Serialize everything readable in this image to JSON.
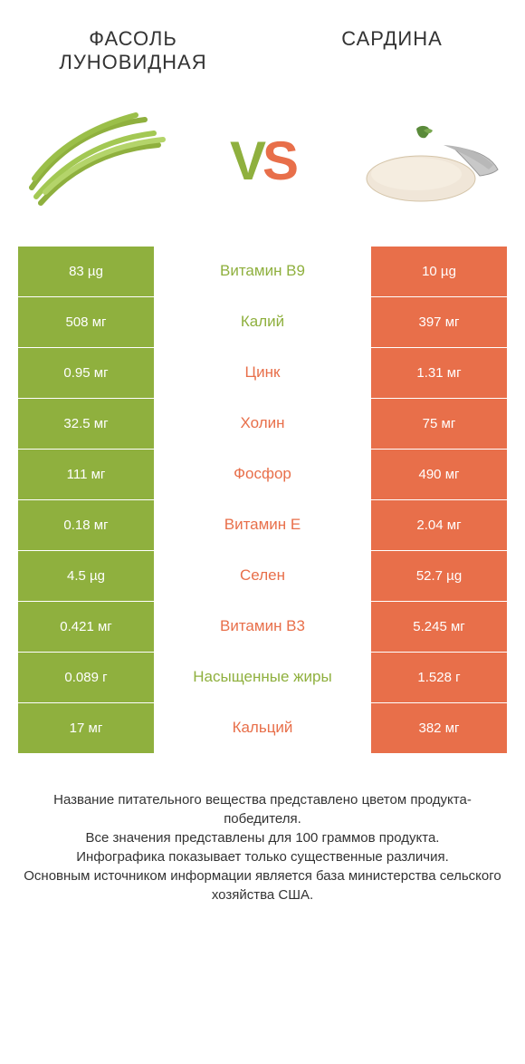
{
  "header": {
    "left_title": "ФАСОЛЬ ЛУНОВИДНАЯ",
    "right_title": "САРДИНА"
  },
  "vs": {
    "v": "V",
    "s": "S"
  },
  "colors": {
    "green": "#8fb03e",
    "orange": "#e86f4a",
    "text": "#333333",
    "bg": "#ffffff"
  },
  "rows": [
    {
      "label": "Витамин B9",
      "left": "83 µg",
      "right": "10 µg",
      "winner": "left"
    },
    {
      "label": "Калий",
      "left": "508 мг",
      "right": "397 мг",
      "winner": "left"
    },
    {
      "label": "Цинк",
      "left": "0.95 мг",
      "right": "1.31 мг",
      "winner": "right"
    },
    {
      "label": "Холин",
      "left": "32.5 мг",
      "right": "75 мг",
      "winner": "right"
    },
    {
      "label": "Фосфор",
      "left": "111 мг",
      "right": "490 мг",
      "winner": "right"
    },
    {
      "label": "Витамин E",
      "left": "0.18 мг",
      "right": "2.04 мг",
      "winner": "right"
    },
    {
      "label": "Селен",
      "left": "4.5 µg",
      "right": "52.7 µg",
      "winner": "right"
    },
    {
      "label": "Витамин B3",
      "left": "0.421 мг",
      "right": "5.245 мг",
      "winner": "right"
    },
    {
      "label": "Насыщенные жиры",
      "left": "0.089 г",
      "right": "1.528 г",
      "winner": "left"
    },
    {
      "label": "Кальций",
      "left": "17 мг",
      "right": "382 мг",
      "winner": "right"
    }
  ],
  "footer": {
    "line1": "Название питательного вещества представлено цветом продукта-победителя.",
    "line2": "Все значения представлены для 100 граммов продукта.",
    "line3": "Инфографика показывает только существенные различия.",
    "line4": "Основным источником информации является база министерства сельского хозяйства США."
  }
}
